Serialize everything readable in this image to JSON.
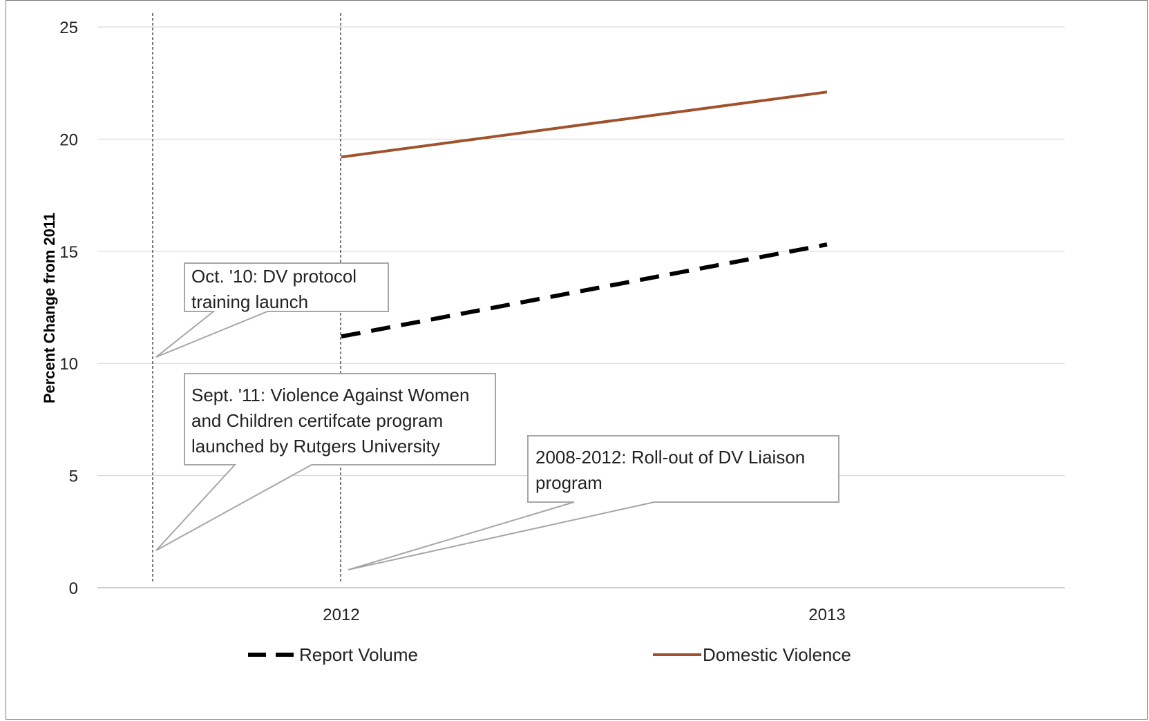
{
  "chart_data": {
    "type": "line",
    "categories": [
      "2012",
      "2013"
    ],
    "series": [
      {
        "name": "Report Volume",
        "values": [
          11.2,
          15.3
        ],
        "color": "#000000",
        "style": "dashed"
      },
      {
        "name": "Domestic Violence",
        "values": [
          19.2,
          22.1
        ],
        "color": "#A0522D",
        "style": "solid"
      }
    ],
    "ylabel": "Percent Change from 2011",
    "ylim": [
      0,
      25
    ],
    "yticks": [
      "0",
      "5",
      "10",
      "15",
      "20",
      "25"
    ],
    "grid": true,
    "legend_position": "bottom",
    "annotations": [
      {
        "lines": [
          "Oct. '10: DV protocol",
          "training launch"
        ]
      },
      {
        "lines": [
          "Sept. '11: Violence Against Women",
          "and Children certifcate program",
          "launched by Rutgers University"
        ]
      },
      {
        "lines": [
          "2008-2012: Roll-out of DV Liaison",
          "program"
        ]
      }
    ]
  }
}
